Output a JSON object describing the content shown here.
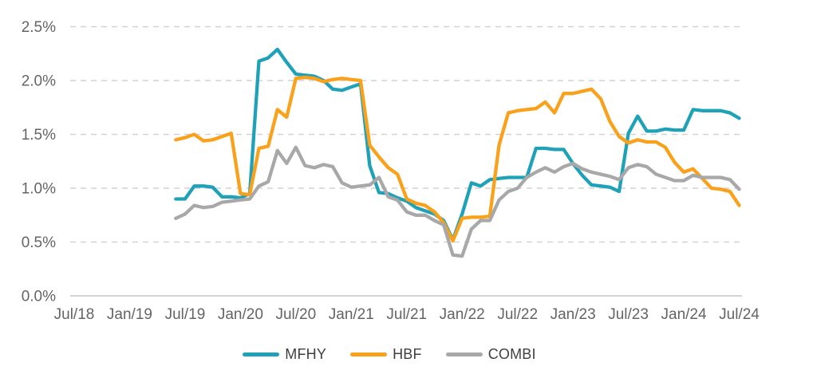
{
  "chart": {
    "background": "#ffffff",
    "axis_label_color": "#646464",
    "gridline_color": "#d2d2d2",
    "axis_line_color": "#c6c6c6",
    "legend_label_color": "#3f3f3f"
  },
  "chart_data": {
    "type": "line",
    "title": "",
    "xlabel": "",
    "ylabel": "",
    "y_unit": "%",
    "ylim": [
      0.0,
      2.5
    ],
    "grid": "horizontal-dashed",
    "legend_position": "bottom",
    "y_tick_labels": [
      "0.0%",
      "0.5%",
      "1.0%",
      "1.5%",
      "2.0%",
      "2.5%"
    ],
    "x_tick_labels": [
      "Jul/18",
      "Jan/19",
      "Jul/19",
      "Jan/20",
      "Jul/20",
      "Jan/21",
      "Jul/21",
      "Jan/22",
      "Jul/22",
      "Jan/23",
      "Jul/23",
      "Jan/24",
      "Jul/24"
    ],
    "months_per_tick": 6,
    "series_start_offset_months": 11,
    "x": [
      "Jun/19",
      "Jul/19",
      "Aug/19",
      "Sep/19",
      "Oct/19",
      "Nov/19",
      "Dec/19",
      "Jan/20",
      "Feb/20",
      "Mar/20",
      "Apr/20",
      "May/20",
      "Jun/20",
      "Jul/20",
      "Aug/20",
      "Sep/20",
      "Oct/20",
      "Nov/20",
      "Dec/20",
      "Jan/21",
      "Feb/21",
      "Mar/21",
      "Apr/21",
      "May/21",
      "Jun/21",
      "Jul/21",
      "Aug/21",
      "Sep/21",
      "Oct/21",
      "Nov/21",
      "Dec/21",
      "Jan/22",
      "Feb/22",
      "Mar/22",
      "Apr/22",
      "May/22",
      "Jun/22",
      "Jul/22",
      "Aug/22",
      "Sep/22",
      "Oct/22",
      "Nov/22",
      "Dec/22",
      "Jan/23",
      "Feb/23",
      "Mar/23",
      "Apr/23",
      "May/23",
      "Jun/23",
      "Jul/23",
      "Aug/23",
      "Sep/23",
      "Oct/23",
      "Nov/23",
      "Dec/23",
      "Jan/24",
      "Feb/24",
      "Mar/24",
      "Apr/24",
      "May/24",
      "Jun/24",
      "Jul/24"
    ],
    "series": [
      {
        "name": "MFHY",
        "color": "#1fa2b8",
        "values": [
          0.9,
          0.9,
          1.02,
          1.02,
          1.01,
          0.92,
          0.92,
          0.91,
          0.95,
          2.18,
          2.21,
          2.29,
          2.17,
          2.06,
          2.05,
          2.04,
          2.0,
          1.92,
          1.91,
          1.94,
          1.97,
          1.21,
          0.96,
          0.95,
          0.91,
          0.88,
          0.82,
          0.79,
          0.76,
          0.7,
          0.52,
          0.76,
          1.05,
          1.02,
          1.08,
          1.09,
          1.1,
          1.1,
          1.1,
          1.37,
          1.37,
          1.36,
          1.36,
          1.23,
          1.12,
          1.03,
          1.02,
          1.01,
          0.97,
          1.51,
          1.67,
          1.53,
          1.53,
          1.55,
          1.54,
          1.54,
          1.73,
          1.72,
          1.72,
          1.72,
          1.7,
          1.65
        ]
      },
      {
        "name": "HBF",
        "color": "#f9a11b",
        "values": [
          1.45,
          1.47,
          1.5,
          1.44,
          1.45,
          1.48,
          1.51,
          0.95,
          0.94,
          1.37,
          1.39,
          1.73,
          1.66,
          2.02,
          2.03,
          2.02,
          1.99,
          2.01,
          2.02,
          2.01,
          2.0,
          1.4,
          1.29,
          1.19,
          1.13,
          0.9,
          0.86,
          0.84,
          0.78,
          0.68,
          0.51,
          0.72,
          0.73,
          0.73,
          0.74,
          1.4,
          1.7,
          1.72,
          1.73,
          1.74,
          1.8,
          1.7,
          1.88,
          1.88,
          1.9,
          1.92,
          1.83,
          1.62,
          1.48,
          1.42,
          1.45,
          1.43,
          1.43,
          1.38,
          1.24,
          1.15,
          1.18,
          1.09,
          1.0,
          0.99,
          0.97,
          0.84
        ]
      },
      {
        "name": "COMBI",
        "color": "#a8a8a8",
        "values": [
          0.72,
          0.76,
          0.84,
          0.82,
          0.83,
          0.87,
          0.88,
          0.89,
          0.9,
          1.02,
          1.06,
          1.35,
          1.23,
          1.38,
          1.21,
          1.19,
          1.22,
          1.2,
          1.05,
          1.01,
          1.02,
          1.03,
          1.1,
          0.92,
          0.89,
          0.78,
          0.75,
          0.75,
          0.7,
          0.66,
          0.38,
          0.37,
          0.62,
          0.7,
          0.7,
          0.89,
          0.97,
          1.0,
          1.1,
          1.15,
          1.19,
          1.15,
          1.2,
          1.23,
          1.18,
          1.15,
          1.13,
          1.11,
          1.08,
          1.19,
          1.22,
          1.2,
          1.13,
          1.1,
          1.07,
          1.07,
          1.12,
          1.1,
          1.1,
          1.1,
          1.08,
          0.99
        ]
      }
    ]
  }
}
